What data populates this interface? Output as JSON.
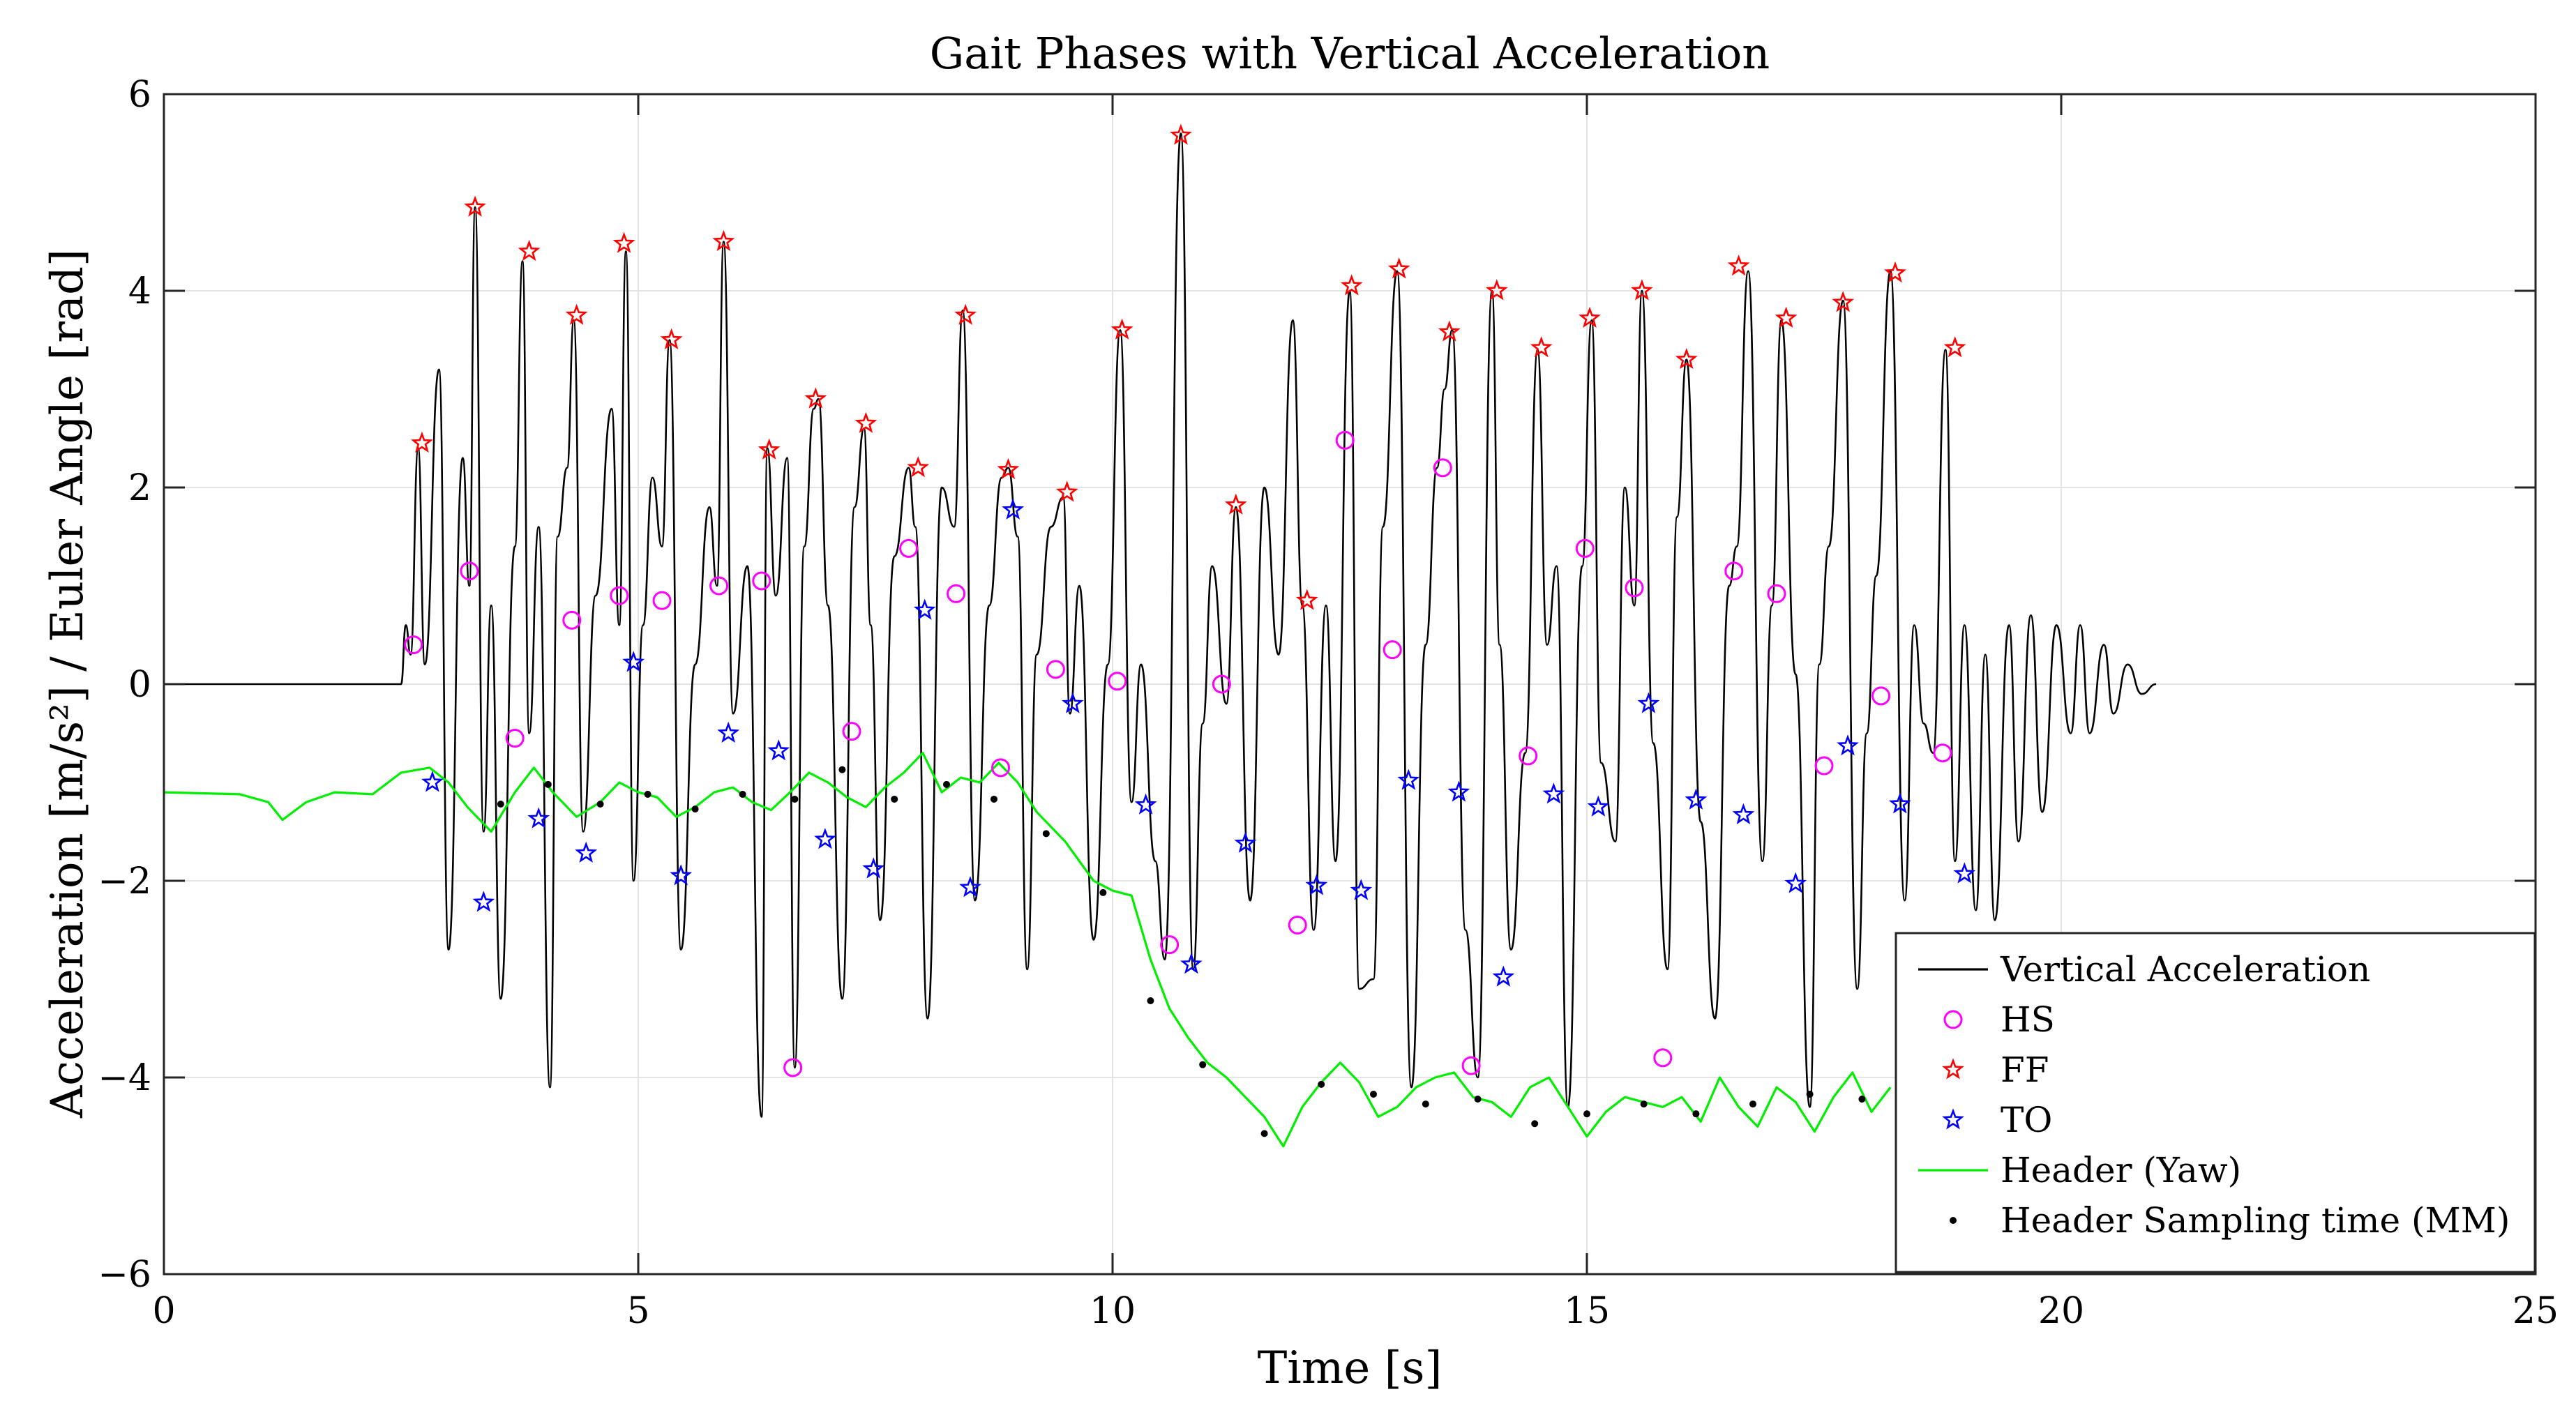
{
  "chart_data": {
    "type": "line",
    "title": "Gait Phases with Vertical Acceleration",
    "xlabel": "Time [s]",
    "ylabel": "Acceleration [m/s²] / Euler Angle [rad]",
    "xlim": [
      0,
      25
    ],
    "ylim": [
      -6,
      6
    ],
    "grid": true,
    "legend_position": "bottom-right",
    "xticks": [
      0,
      5,
      10,
      15,
      20,
      25
    ],
    "yticks": [
      -6,
      -4,
      -2,
      0,
      2,
      4,
      6
    ],
    "xtick_labels": [
      "0",
      "5",
      "10",
      "15",
      "20",
      "25"
    ],
    "ytick_labels": [
      "−6",
      "−4",
      "−2",
      "0",
      "2",
      "4",
      "6"
    ],
    "colors": {
      "acceleration": "#000000",
      "hs": "#ff00ff",
      "ff": "#ff0000",
      "to": "#0000ff",
      "yaw": "#00ee00",
      "sampling": "#000000"
    },
    "series": [
      {
        "name": "Vertical Acceleration",
        "style": "line",
        "description": "Oscillating acceleration signal, flat at 0 until t≈2.5 s, then gait cycles until ≈19 s, decaying ripple to 21 s",
        "extrema_x": [
          0,
          2.5,
          2.55,
          2.6,
          2.68,
          2.75,
          2.9,
          3.0,
          3.15,
          3.22,
          3.28,
          3.37,
          3.45,
          3.55,
          3.7,
          3.78,
          3.85,
          3.95,
          4.07,
          4.15,
          4.25,
          4.32,
          4.42,
          4.55,
          4.72,
          4.8,
          4.87,
          4.95,
          5.05,
          5.15,
          5.25,
          5.33,
          5.45,
          5.6,
          5.75,
          5.83,
          5.9,
          6.0,
          6.15,
          6.3,
          6.36,
          6.45,
          6.57,
          6.65,
          6.75,
          6.85,
          6.9,
          7.0,
          7.15,
          7.28,
          7.38,
          7.45,
          7.55,
          7.7,
          7.85,
          7.92,
          8.05,
          8.2,
          8.33,
          8.42,
          8.55,
          8.7,
          8.83,
          8.9,
          9.0,
          9.1,
          9.2,
          9.35,
          9.48,
          9.55,
          9.65,
          9.8,
          9.95,
          10.08,
          10.2,
          10.3,
          10.45,
          10.55,
          10.72,
          10.85,
          10.95,
          11.05,
          11.2,
          11.3,
          11.45,
          11.6,
          11.75,
          11.9,
          12.0,
          12.12,
          12.25,
          12.35,
          12.5,
          12.6,
          12.75,
          12.85,
          13.0,
          13.15,
          13.3,
          13.42,
          13.5,
          13.58,
          13.72,
          13.85,
          14.0,
          14.08,
          14.2,
          14.35,
          14.48,
          14.58,
          14.68,
          14.8,
          14.95,
          15.05,
          15.15,
          15.3,
          15.4,
          15.5,
          15.58,
          15.7,
          15.85,
          15.95,
          16.05,
          16.2,
          16.35,
          16.5,
          16.58,
          16.7,
          16.85,
          16.95,
          17.05,
          17.2,
          17.35,
          17.45,
          17.55,
          17.7,
          17.85,
          17.95,
          18.05,
          18.2,
          18.35,
          18.45,
          18.55,
          18.65,
          18.78,
          18.88,
          18.98,
          19.1,
          19.2,
          19.3,
          19.45,
          19.55,
          19.68,
          19.8,
          19.95,
          20.1,
          20.2,
          20.3,
          20.45,
          20.55,
          20.7,
          20.85,
          21.0
        ],
        "extrema_y": [
          0,
          0,
          0.6,
          0.3,
          2.4,
          0.2,
          3.2,
          -2.7,
          2.3,
          1.0,
          4.85,
          -1.5,
          0.8,
          -3.2,
          1.4,
          4.3,
          -0.5,
          1.6,
          -4.1,
          1.5,
          2.2,
          3.7,
          -1.5,
          0.9,
          2.8,
          0.6,
          4.4,
          -2.0,
          0.6,
          2.1,
          1.4,
          3.5,
          -2.7,
          0.2,
          1.8,
          1.0,
          4.5,
          -0.3,
          1.2,
          -4.4,
          2.4,
          0.9,
          2.3,
          -3.9,
          1.4,
          2.8,
          2.9,
          0.8,
          -3.2,
          1.8,
          2.6,
          0.6,
          -2.4,
          1.3,
          2.2,
          1.6,
          -3.4,
          2.0,
          1.6,
          3.8,
          -2.2,
          0.8,
          2.1,
          2.2,
          1.5,
          -2.9,
          0.3,
          1.6,
          1.9,
          -0.3,
          1.0,
          -2.6,
          0.2,
          3.6,
          -1.2,
          0.2,
          -1.8,
          -2.8,
          5.6,
          -2.9,
          -0.4,
          1.2,
          -0.2,
          1.8,
          -2.2,
          2.0,
          0.3,
          3.7,
          0.8,
          -2.5,
          0.8,
          -1.8,
          4.0,
          -3.1,
          -3.0,
          1.6,
          4.2,
          -4.1,
          0.4,
          2.2,
          3.0,
          3.6,
          -2.5,
          -4.0,
          4.0,
          0.4,
          -2.7,
          -0.7,
          3.4,
          0.4,
          1.2,
          -4.3,
          1.2,
          3.7,
          -0.8,
          -1.6,
          2.0,
          0.8,
          4.0,
          -0.6,
          -2.9,
          1.7,
          3.3,
          -1.4,
          -3.4,
          1.0,
          1.4,
          4.2,
          -1.8,
          0.8,
          3.7,
          0.1,
          -4.3,
          0.2,
          1.4,
          3.9,
          -3.1,
          -0.5,
          1.1,
          4.2,
          -2.2,
          0.6,
          -0.4,
          -0.7,
          3.4,
          -1.8,
          0.6,
          -2.3,
          0.3,
          -2.4,
          0.6,
          -1.6,
          0.7,
          -1.3,
          0.6,
          -0.5,
          0.6,
          -0.5,
          0.4,
          -0.3,
          0.2,
          -0.1,
          0.0
        ]
      },
      {
        "name": "HS",
        "style": "marker-circle",
        "x": [
          2.63,
          3.22,
          3.7,
          4.3,
          4.8,
          5.25,
          5.85,
          6.3,
          6.63,
          7.25,
          7.85,
          8.35,
          8.82,
          9.4,
          10.05,
          10.6,
          11.15,
          11.95,
          12.45,
          12.95,
          13.48,
          13.78,
          14.38,
          14.98,
          15.5,
          15.8,
          16.55,
          17.0,
          17.5,
          18.1,
          18.75
        ],
        "y": [
          0.4,
          1.15,
          -0.55,
          0.65,
          0.9,
          0.85,
          1.0,
          1.05,
          -3.9,
          -0.48,
          1.38,
          0.92,
          -0.85,
          0.15,
          0.03,
          -2.65,
          0.0,
          -2.45,
          2.48,
          0.35,
          2.2,
          -3.88,
          -0.73,
          1.38,
          0.98,
          -3.8,
          1.15,
          0.92,
          -0.83,
          -0.12,
          -0.7
        ]
      },
      {
        "name": "FF",
        "style": "marker-star",
        "x": [
          2.72,
          3.28,
          3.85,
          4.35,
          4.85,
          5.35,
          5.9,
          6.38,
          6.87,
          7.4,
          7.95,
          8.45,
          8.9,
          9.52,
          10.1,
          10.72,
          11.3,
          12.05,
          12.52,
          13.02,
          13.55,
          14.05,
          14.52,
          15.03,
          15.58,
          16.05,
          16.6,
          17.1,
          17.7,
          18.25,
          18.88
        ],
        "y": [
          2.45,
          4.85,
          4.4,
          3.75,
          4.48,
          3.5,
          4.5,
          2.38,
          2.9,
          2.65,
          2.2,
          3.75,
          2.18,
          1.95,
          3.6,
          5.58,
          1.82,
          0.85,
          4.05,
          4.22,
          3.58,
          4.0,
          3.42,
          3.72,
          4.0,
          3.3,
          4.25,
          3.72,
          3.88,
          4.18,
          3.42
        ]
      },
      {
        "name": "TO",
        "style": "marker-star",
        "x": [
          2.83,
          3.37,
          3.95,
          4.45,
          4.95,
          5.45,
          5.95,
          6.48,
          6.97,
          7.48,
          8.02,
          8.5,
          8.95,
          9.58,
          10.35,
          10.83,
          11.4,
          12.15,
          12.62,
          13.12,
          13.65,
          14.12,
          14.65,
          15.12,
          15.65,
          16.15,
          16.65,
          17.2,
          17.75,
          18.3,
          18.98
        ],
        "y": [
          -1.0,
          -2.22,
          -1.37,
          -1.72,
          0.22,
          -1.95,
          -0.5,
          -0.68,
          -1.58,
          -1.88,
          0.75,
          -2.07,
          1.77,
          -0.2,
          -1.23,
          -2.85,
          -1.62,
          -2.05,
          -2.1,
          -0.98,
          -1.1,
          -2.98,
          -1.12,
          -1.25,
          -0.2,
          -1.18,
          -1.33,
          -2.03,
          -0.63,
          -1.22,
          -1.93
        ]
      },
      {
        "name": "Header (Yaw)",
        "style": "line",
        "x": [
          0,
          0.8,
          1.1,
          1.25,
          1.5,
          1.8,
          2.2,
          2.5,
          2.8,
          3.0,
          3.2,
          3.45,
          3.7,
          3.9,
          4.1,
          4.35,
          4.6,
          4.8,
          5.0,
          5.2,
          5.4,
          5.6,
          5.8,
          6.0,
          6.2,
          6.4,
          6.6,
          6.8,
          7.0,
          7.2,
          7.4,
          7.6,
          7.8,
          8.0,
          8.2,
          8.4,
          8.6,
          8.8,
          9.0,
          9.2,
          9.5,
          9.8,
          10.0,
          10.2,
          10.4,
          10.6,
          10.8,
          11.0,
          11.2,
          11.4,
          11.6,
          11.8,
          12.0,
          12.2,
          12.4,
          12.6,
          12.8,
          13.0,
          13.2,
          13.4,
          13.6,
          13.8,
          14.0,
          14.2,
          14.4,
          14.6,
          14.8,
          15.0,
          15.2,
          15.4,
          15.6,
          15.8,
          16.0,
          16.2,
          16.4,
          16.6,
          16.8,
          17.0,
          17.2,
          17.4,
          17.6,
          17.8,
          18.0,
          18.2
        ],
        "y": [
          -1.1,
          -1.12,
          -1.2,
          -1.38,
          -1.2,
          -1.1,
          -1.12,
          -0.9,
          -0.85,
          -1.0,
          -1.25,
          -1.5,
          -1.1,
          -0.85,
          -1.1,
          -1.35,
          -1.2,
          -1.0,
          -1.1,
          -1.15,
          -1.35,
          -1.25,
          -1.1,
          -1.05,
          -1.2,
          -1.28,
          -1.1,
          -0.9,
          -1.0,
          -1.15,
          -1.25,
          -1.05,
          -0.9,
          -0.7,
          -1.1,
          -0.95,
          -1.0,
          -0.8,
          -1.0,
          -1.3,
          -1.6,
          -2.0,
          -2.1,
          -2.15,
          -2.8,
          -3.3,
          -3.6,
          -3.85,
          -4.0,
          -4.2,
          -4.4,
          -4.7,
          -4.3,
          -4.05,
          -3.85,
          -4.05,
          -4.4,
          -4.3,
          -4.1,
          -4.0,
          -3.95,
          -4.2,
          -4.25,
          -4.4,
          -4.1,
          -4.0,
          -4.3,
          -4.6,
          -4.35,
          -4.2,
          -4.25,
          -4.3,
          -4.2,
          -4.45,
          -4.0,
          -4.3,
          -4.5,
          -4.1,
          -4.25,
          -4.55,
          -4.2,
          -3.95,
          -4.35,
          -4.1
        ]
      },
      {
        "name": "Header Sampling time (MM)",
        "style": "marker-dot",
        "x": [
          3.55,
          4.05,
          4.6,
          5.1,
          5.6,
          6.1,
          6.65,
          7.15,
          7.7,
          8.25,
          8.75,
          9.3,
          9.9,
          10.4,
          10.95,
          11.6,
          12.2,
          12.75,
          13.3,
          13.85,
          14.45,
          15.0,
          15.6,
          16.15,
          16.75,
          17.35,
          17.9
        ],
        "y": [
          -1.22,
          -1.02,
          -1.22,
          -1.12,
          -1.27,
          -1.12,
          -1.17,
          -0.87,
          -1.17,
          -1.02,
          -1.17,
          -1.52,
          -2.12,
          -3.22,
          -3.87,
          -4.57,
          -4.07,
          -4.17,
          -4.27,
          -4.22,
          -4.47,
          -4.37,
          -4.27,
          -4.37,
          -4.27,
          -4.17,
          -4.22
        ]
      }
    ]
  }
}
